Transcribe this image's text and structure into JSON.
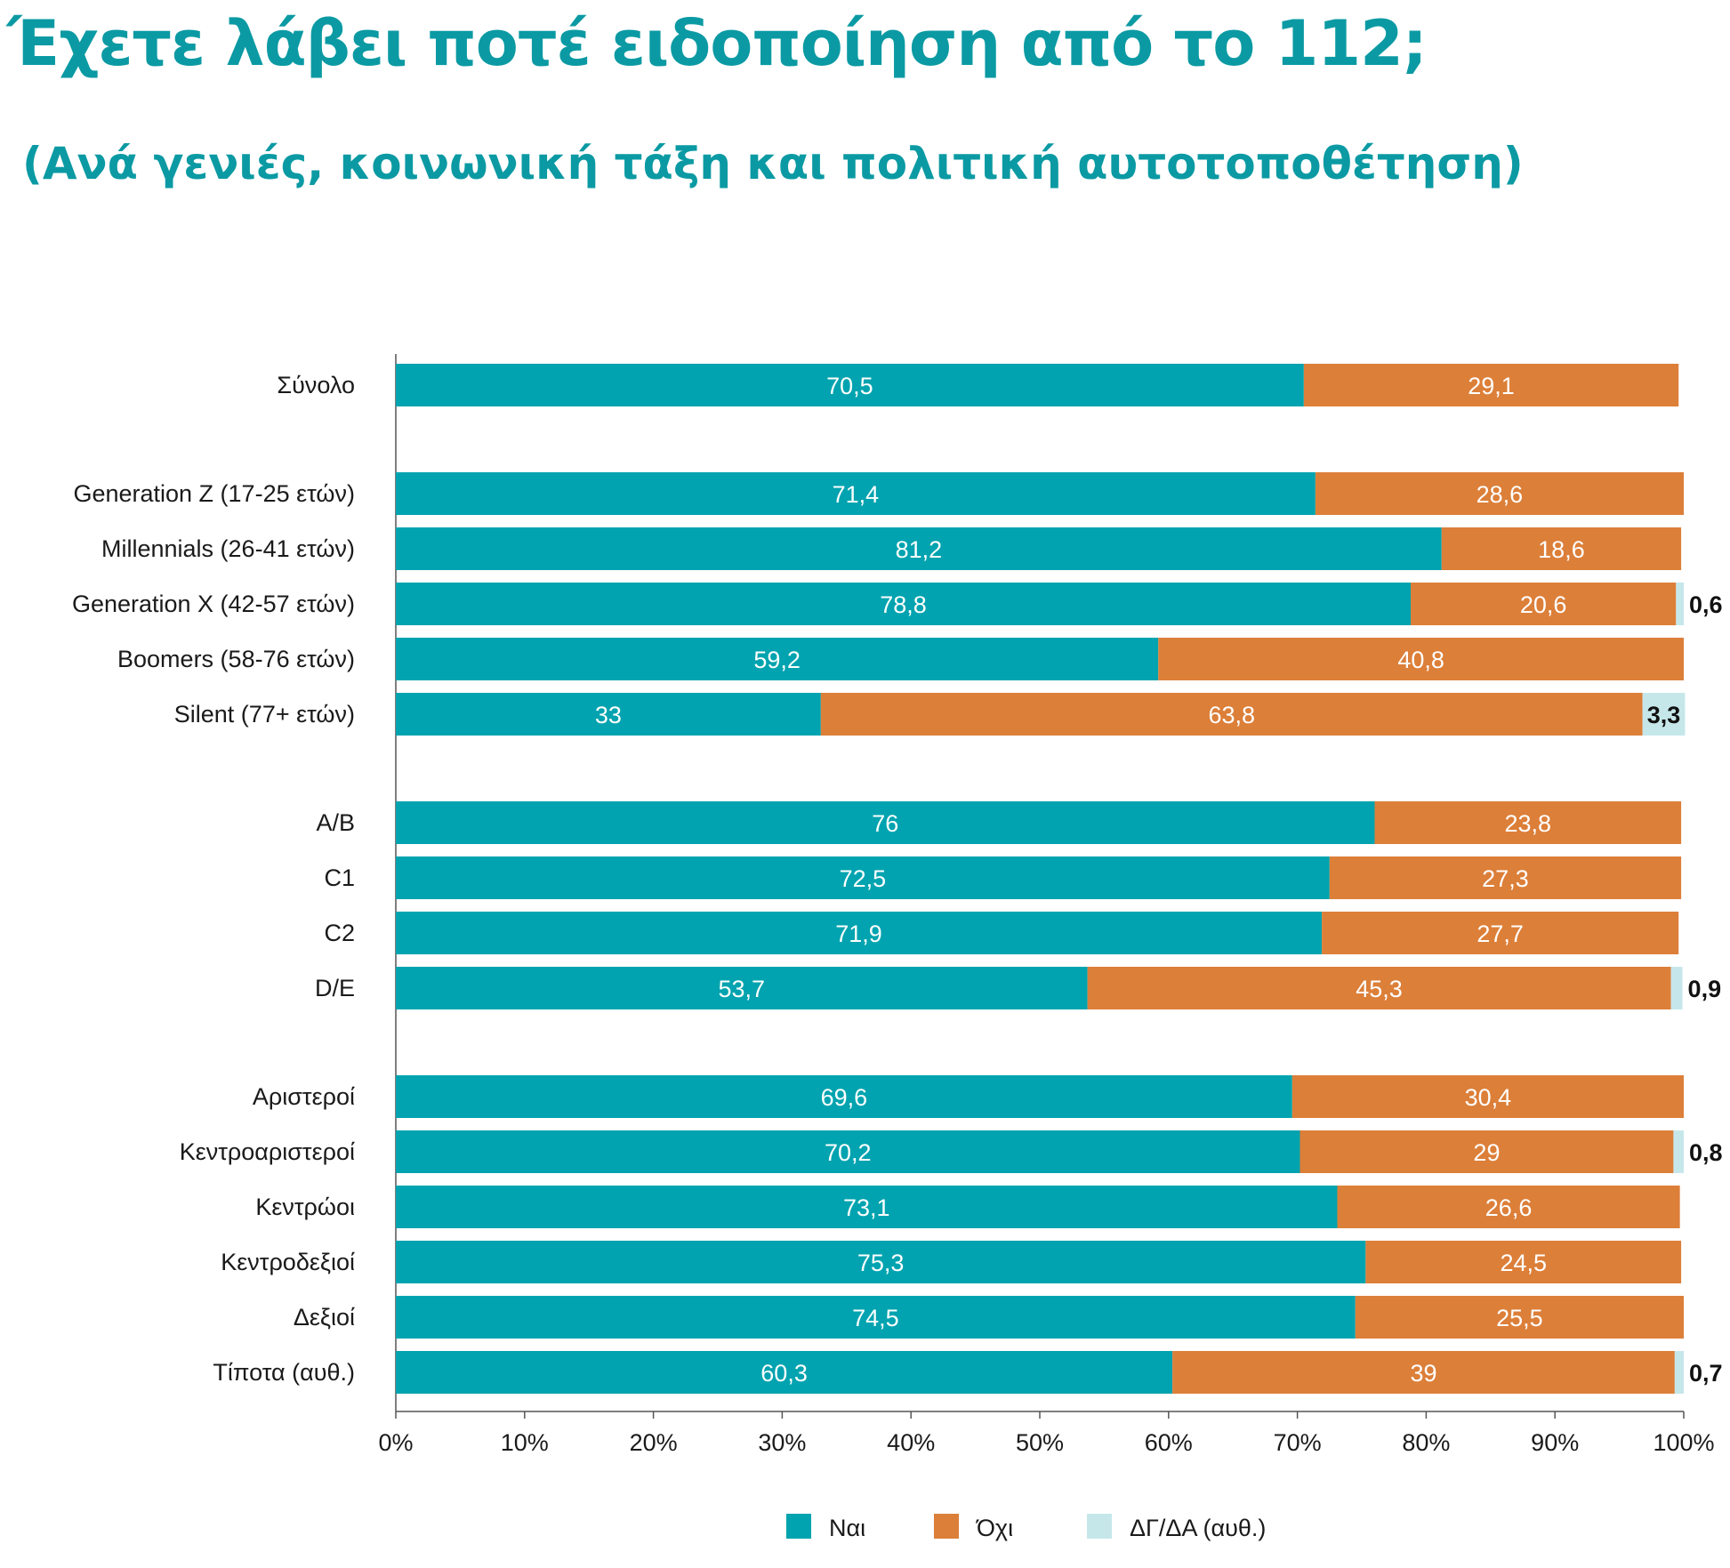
{
  "title": "Έχετε λάβει ποτέ ειδοποίηση από το 112;",
  "subtitle": "(Ανά γενιές, κοινωνική τάξη και πολιτική αυτοτοποθέτηση)",
  "colors": {
    "yes": "#00a3af",
    "no": "#dc7f39",
    "dk": "#c6e7ea",
    "axis": "#555555"
  },
  "chart_data": {
    "type": "bar",
    "orientation": "horizontal",
    "stacked": true,
    "title": "Έχετε λάβει ποτέ ειδοποίηση από το 112;",
    "subtitle": "(Ανά γενιές, κοινωνική τάξη και πολιτική αυτοτοποθέτηση)",
    "xlim": [
      0,
      100
    ],
    "x_ticks": [
      "0%",
      "10%",
      "20%",
      "30%",
      "40%",
      "50%",
      "60%",
      "70%",
      "80%",
      "90%",
      "100%"
    ],
    "legend_position": "bottom",
    "categories": [
      "Σύνολο",
      "Generation Z (17-25 ετών)",
      "Millennials (26-41 ετών)",
      "Generation X (42-57 ετών)",
      "Boomers (58-76 ετών)",
      "Silent (77+ ετών)",
      "A/B",
      "C1",
      "C2",
      "D/E",
      "Αριστεροί",
      "Κεντροαριστεροί",
      "Κεντρώοι",
      "Κεντροδεξιοί",
      "Δεξιοί",
      "Τίποτα (αυθ.)"
    ],
    "groups": [
      0,
      1,
      1,
      1,
      1,
      1,
      2,
      2,
      2,
      2,
      3,
      3,
      3,
      3,
      3,
      3
    ],
    "series": [
      {
        "name": "Ναι",
        "values": [
          70.5,
          71.4,
          81.2,
          78.8,
          59.2,
          33,
          76,
          72.5,
          71.9,
          53.7,
          69.6,
          70.2,
          73.1,
          75.3,
          74.5,
          60.3
        ],
        "labels": [
          "70,5",
          "71,4",
          "81,2",
          "78,8",
          "59,2",
          "33",
          "76",
          "72,5",
          "71,9",
          "53,7",
          "69,6",
          "70,2",
          "73,1",
          "75,3",
          "74,5",
          "60,3"
        ]
      },
      {
        "name": "Όχι",
        "values": [
          29.1,
          28.6,
          18.6,
          20.6,
          40.8,
          63.8,
          23.8,
          27.3,
          27.7,
          45.3,
          30.4,
          29,
          26.6,
          24.5,
          25.5,
          39
        ],
        "labels": [
          "29,1",
          "28,6",
          "18,6",
          "20,6",
          "40,8",
          "63,8",
          "23,8",
          "27,3",
          "27,7",
          "45,3",
          "30,4",
          "29",
          "26,6",
          "24,5",
          "25,5",
          "39"
        ]
      },
      {
        "name": "ΔΓ/ΔΑ (αυθ.)",
        "values": [
          0,
          0,
          0,
          0.6,
          0,
          3.3,
          0,
          0,
          0,
          0.9,
          0,
          0.8,
          0,
          0,
          0,
          0.7
        ],
        "labels": [
          "",
          "",
          "",
          "0,6",
          "",
          "3,3",
          "",
          "",
          "",
          "0,9",
          "",
          "0,8",
          "",
          "",
          "",
          "0,7"
        ]
      }
    ]
  }
}
